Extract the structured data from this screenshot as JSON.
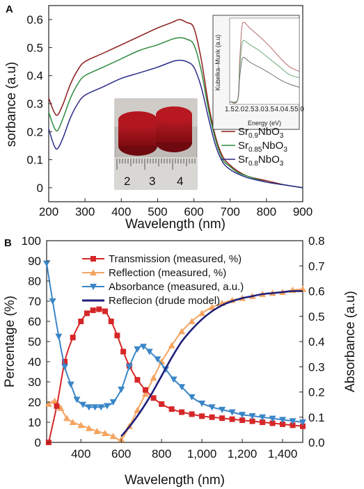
{
  "chart_data": [
    {
      "panel": "A",
      "type": "line",
      "xlabel": "Wavelength (nm)",
      "ylabel": "sorbance (a.u)",
      "xlim": [
        200,
        900
      ],
      "ylim": [
        -0.05,
        0.65
      ],
      "xticks": [
        200,
        300,
        400,
        500,
        600,
        700,
        800,
        900
      ],
      "yticks": [
        0,
        0.1,
        0.2,
        0.3,
        0.4,
        0.5,
        0.6
      ],
      "series": [
        {
          "name": "Sr0.9NbO3",
          "label_base": "Sr",
          "label_sub": "0.9",
          "label_rest": "NbO",
          "label_sub2": "3",
          "color": "#8b1a1a",
          "x": [
            200,
            215,
            225,
            240,
            260,
            280,
            300,
            350,
            400,
            450,
            500,
            540,
            560,
            580,
            600,
            620,
            640,
            660,
            680,
            700,
            720,
            750,
            800,
            850,
            900
          ],
          "y": [
            0.32,
            0.27,
            0.26,
            0.3,
            0.37,
            0.42,
            0.45,
            0.48,
            0.51,
            0.54,
            0.57,
            0.59,
            0.6,
            0.59,
            0.57,
            0.46,
            0.3,
            0.18,
            0.11,
            0.08,
            0.06,
            0.04,
            0.025,
            0.01,
            0.0
          ]
        },
        {
          "name": "Sr0.85NbO3",
          "label_base": "Sr",
          "label_sub": "0.85",
          "label_rest": "NbO",
          "label_sub2": "3",
          "color": "#2e8b3e",
          "x": [
            200,
            215,
            225,
            240,
            260,
            280,
            300,
            350,
            400,
            450,
            500,
            540,
            560,
            580,
            600,
            620,
            640,
            660,
            680,
            700,
            720,
            750,
            800,
            850,
            900
          ],
          "y": [
            0.27,
            0.215,
            0.205,
            0.25,
            0.32,
            0.37,
            0.4,
            0.43,
            0.46,
            0.49,
            0.51,
            0.53,
            0.535,
            0.53,
            0.51,
            0.42,
            0.28,
            0.17,
            0.1,
            0.075,
            0.055,
            0.04,
            0.02,
            0.01,
            0.0
          ]
        },
        {
          "name": "Sr0.8NbO3",
          "label_base": "Sr",
          "label_sub": "0.8",
          "label_rest": "NbO",
          "label_sub2": "3",
          "color": "#2a2a8a",
          "x": [
            200,
            215,
            225,
            240,
            260,
            280,
            300,
            350,
            400,
            450,
            500,
            540,
            560,
            580,
            600,
            620,
            640,
            660,
            680,
            700,
            720,
            750,
            800,
            850,
            900
          ],
          "y": [
            0.21,
            0.15,
            0.14,
            0.18,
            0.25,
            0.3,
            0.33,
            0.36,
            0.39,
            0.41,
            0.43,
            0.45,
            0.455,
            0.45,
            0.43,
            0.36,
            0.25,
            0.15,
            0.09,
            0.065,
            0.05,
            0.035,
            0.02,
            0.01,
            0.0
          ]
        }
      ],
      "inset": {
        "xlabel": "Energy (eV)",
        "ylabel": "Kubelka–Munk (a.u)",
        "xlim": [
          1.5,
          5.0
        ],
        "xticks": [
          "1.5",
          "2.0",
          "2.5",
          "3.0",
          "3.5",
          "4.0",
          "4.5",
          "5.0"
        ],
        "series": [
          {
            "color": "#b56a6a",
            "x": [
              1.5,
              1.9,
              2.0,
              2.1,
              2.2,
              2.5,
              3.0,
              3.5,
              4.0,
              4.5,
              5.0
            ],
            "y": [
              0.0,
              0.02,
              0.5,
              0.9,
              1.0,
              0.93,
              0.82,
              0.7,
              0.56,
              0.44,
              0.38
            ]
          },
          {
            "color": "#6aa87a",
            "x": [
              1.5,
              1.9,
              2.0,
              2.1,
              2.2,
              2.5,
              3.0,
              3.5,
              4.0,
              4.5,
              5.0
            ],
            "y": [
              0.0,
              0.02,
              0.4,
              0.68,
              0.77,
              0.72,
              0.64,
              0.54,
              0.44,
              0.34,
              0.3
            ]
          },
          {
            "color": "#707070",
            "x": [
              1.5,
              1.9,
              2.0,
              2.1,
              2.2,
              2.5,
              3.0,
              3.5,
              4.0,
              4.5,
              5.0
            ],
            "y": [
              0.0,
              0.02,
              0.3,
              0.5,
              0.56,
              0.5,
              0.43,
              0.36,
              0.28,
              0.22,
              0.18
            ]
          }
        ]
      },
      "photo": {
        "ruler_labels": [
          "2",
          "3",
          "4"
        ],
        "pellet_color": "#a3141c"
      }
    },
    {
      "panel": "B",
      "type": "line",
      "xlabel": "Wavelength (nm)",
      "ylabel": "Percentage (%)",
      "ylabel_right": "Absorbance (a.u)",
      "xlim": [
        230,
        1500
      ],
      "ylim": [
        0,
        100
      ],
      "ylim_right": [
        0,
        0.8
      ],
      "xticks": [
        400,
        600,
        800,
        1000,
        1200,
        1400
      ],
      "xtick_labels": [
        "400",
        "600",
        "800",
        "1,000",
        "1,200",
        "1,400"
      ],
      "yticks": [
        0,
        10,
        20,
        30,
        40,
        50,
        60,
        70,
        80,
        90,
        100
      ],
      "yticks_right": [
        "0.0",
        "0.1",
        "0.2",
        "0.3",
        "0.4",
        "0.5",
        "0.6",
        "0.7",
        "0.8"
      ],
      "series": [
        {
          "name": "Transmission (measured, %)",
          "color": "#d62728",
          "marker": "square",
          "axis": "left",
          "x": [
            240,
            280,
            320,
            360,
            400,
            430,
            460,
            490,
            520,
            550,
            580,
            610,
            640,
            680,
            720,
            760,
            800,
            850,
            900,
            950,
            1000,
            1050,
            1100,
            1150,
            1200,
            1250,
            1300,
            1350,
            1400,
            1450,
            1500
          ],
          "y": [
            0,
            18,
            40,
            52,
            60,
            64,
            65.5,
            66,
            65,
            60,
            53,
            45,
            38,
            31,
            26,
            22,
            19,
            16.5,
            15,
            14,
            13,
            12.5,
            12,
            11.5,
            11,
            10.5,
            10,
            9.5,
            9,
            8.5,
            8
          ]
        },
        {
          "name": "Reflection (measured, %)",
          "color": "#f4a460",
          "marker": "triangle-up",
          "axis": "left",
          "x": [
            240,
            270,
            300,
            330,
            360,
            400,
            440,
            480,
            520,
            560,
            600,
            640,
            680,
            720,
            760,
            800,
            850,
            900,
            950,
            1000,
            1050,
            1100,
            1150,
            1200,
            1250,
            1300,
            1350,
            1400,
            1450,
            1500
          ],
          "y": [
            19,
            20.5,
            17,
            12,
            10,
            8.5,
            7,
            5.5,
            4.5,
            3,
            1.5,
            8,
            16,
            24,
            32,
            40,
            48,
            55,
            60,
            64,
            67,
            69,
            70.5,
            71.5,
            72.5,
            73.5,
            74,
            74.5,
            75.5,
            76
          ]
        },
        {
          "name": "Absorbance (measured, a.u.)",
          "color": "#3a86c8",
          "marker": "triangle-down",
          "axis": "right",
          "x": [
            230,
            260,
            290,
            320,
            350,
            380,
            410,
            440,
            470,
            500,
            530,
            560,
            600,
            640,
            680,
            710,
            740,
            780,
            820,
            860,
            900,
            950,
            1000,
            1050,
            1100,
            1150,
            1200,
            1250,
            1300,
            1350,
            1400,
            1450,
            1500
          ],
          "y": [
            0.71,
            0.56,
            0.42,
            0.3,
            0.23,
            0.17,
            0.15,
            0.14,
            0.14,
            0.14,
            0.145,
            0.16,
            0.21,
            0.3,
            0.37,
            0.38,
            0.36,
            0.33,
            0.29,
            0.25,
            0.22,
            0.18,
            0.155,
            0.14,
            0.13,
            0.12,
            0.11,
            0.105,
            0.1,
            0.095,
            0.09,
            0.085,
            0.08
          ]
        },
        {
          "name": "Reflecion (drude model)",
          "color": "#1f1f7a",
          "marker": "none",
          "axis": "left",
          "x": [
            600,
            650,
            700,
            750,
            800,
            850,
            900,
            950,
            1000,
            1050,
            1100,
            1150,
            1200,
            1250,
            1300,
            1350,
            1400,
            1450,
            1500
          ],
          "y": [
            3,
            9,
            16,
            24,
            33,
            42,
            50,
            56,
            61,
            65,
            68,
            70,
            71.5,
            72.5,
            73.5,
            74,
            74.5,
            75,
            75
          ]
        }
      ]
    }
  ]
}
